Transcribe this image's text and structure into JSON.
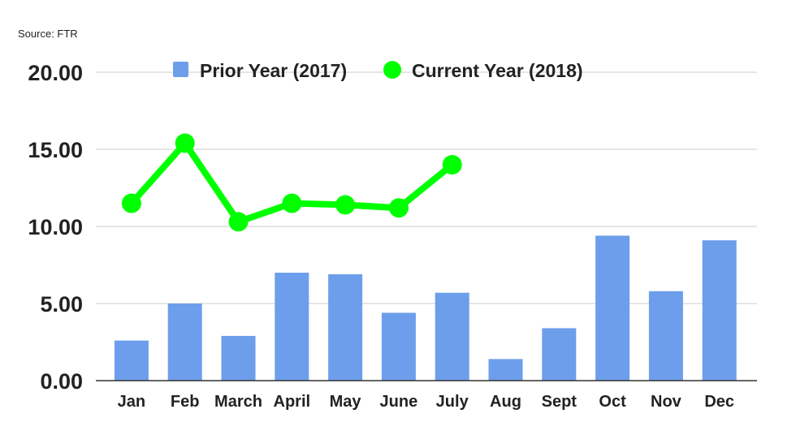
{
  "source": "Source: FTR",
  "colors": {
    "prior": "#6d9eeb",
    "current": "#00ff00",
    "grid": "#cccccc",
    "text": "#222222"
  },
  "chart_data": {
    "type": "bar",
    "categories": [
      "Jan",
      "Feb",
      "March",
      "April",
      "May",
      "June",
      "July",
      "Aug",
      "Sept",
      "Oct",
      "Nov",
      "Dec"
    ],
    "series": [
      {
        "name": "Prior Year (2017)",
        "type": "bar",
        "values": [
          2.6,
          5.0,
          2.9,
          7.0,
          6.9,
          4.4,
          5.7,
          1.4,
          3.4,
          9.4,
          5.8,
          9.1
        ]
      },
      {
        "name": "Current Year (2018)",
        "type": "line",
        "values": [
          11.5,
          15.4,
          10.3,
          11.5,
          11.4,
          11.2,
          14.0,
          null,
          null,
          null,
          null,
          null
        ]
      }
    ],
    "ylim": [
      0,
      20
    ],
    "yticks": [
      "0.00",
      "5.00",
      "10.00",
      "15.00",
      "20.00"
    ],
    "grid": true,
    "legend_position": "top"
  }
}
